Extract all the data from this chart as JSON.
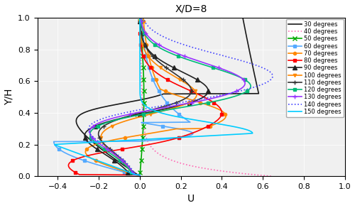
{
  "title": "X/D=8",
  "xlabel": "U",
  "ylabel": "Y/H",
  "xlim": [
    -0.5,
    1.0
  ],
  "ylim": [
    0,
    1
  ],
  "xticks": [
    -0.4,
    -0.2,
    0.0,
    0.2,
    0.4,
    0.6,
    0.8,
    1.0
  ],
  "yticks": [
    0,
    0.2,
    0.4,
    0.6,
    0.8,
    1.0
  ],
  "background": "#f8f8f8",
  "series": [
    {
      "label": "30 degrees",
      "color": "#1a1a1a",
      "ls": "-",
      "marker": "None",
      "ms": 4,
      "lw": 1.2,
      "profile": "30"
    },
    {
      "label": "40 degrees",
      "color": "#ff69b4",
      "ls": ":",
      "marker": "None",
      "ms": 4,
      "lw": 1.2,
      "profile": "40"
    },
    {
      "label": "50 degrees",
      "color": "#00aa00",
      "ls": "-",
      "marker": "x",
      "ms": 5,
      "lw": 1.2,
      "profile": "50"
    },
    {
      "label": "60 degrees",
      "color": "#55aaff",
      "ls": "-",
      "marker": "s",
      "ms": 3,
      "lw": 1.2,
      "profile": "60"
    },
    {
      "label": "70 degrees",
      "color": "#ff8800",
      "ls": "-",
      "marker": "o",
      "ms": 3,
      "lw": 1.2,
      "profile": "70"
    },
    {
      "label": "80 degrees",
      "color": "#ff0000",
      "ls": "-",
      "marker": "s",
      "ms": 3,
      "lw": 1.2,
      "profile": "80"
    },
    {
      "label": "90 degrees",
      "color": "#222222",
      "ls": "-",
      "marker": "^",
      "ms": 4,
      "lw": 1.2,
      "profile": "90"
    },
    {
      "label": "100 degrees",
      "color": "#ff8800",
      "ls": "-",
      "marker": "v",
      "ms": 3,
      "lw": 1.2,
      "profile": "100"
    },
    {
      "label": "110 degrees",
      "color": "#333333",
      "ls": "-",
      "marker": "+",
      "ms": 5,
      "lw": 1.2,
      "profile": "110"
    },
    {
      "label": "120 degrees",
      "color": "#00bb77",
      "ls": "-",
      "marker": "s",
      "ms": 3,
      "lw": 1.2,
      "profile": "120"
    },
    {
      "label": "130 degrees",
      "color": "#9933ff",
      "ls": "-",
      "marker": "+",
      "ms": 5,
      "lw": 1.2,
      "profile": "130"
    },
    {
      "label": "140 degrees",
      "color": "#4444ff",
      "ls": ":",
      "marker": "None",
      "ms": 4,
      "lw": 1.2,
      "profile": "140"
    },
    {
      "label": "150 degrees",
      "color": "#00ccff",
      "ls": "-",
      "marker": "None",
      "ms": 4,
      "lw": 1.2,
      "profile": "150"
    }
  ]
}
